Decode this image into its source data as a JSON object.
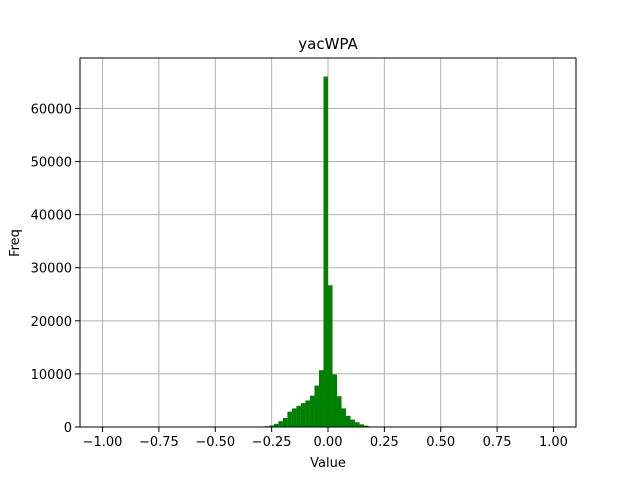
{
  "chart_data": {
    "type": "bar",
    "title": "yacWPA",
    "xlabel": "Value",
    "ylabel": "Freq",
    "xlim": [
      -1.1,
      1.1
    ],
    "ylim": [
      0,
      69500
    ],
    "xticks": [
      -1.0,
      -0.75,
      -0.5,
      -0.25,
      0.0,
      0.25,
      0.5,
      0.75,
      1.0
    ],
    "xtick_labels": [
      "−1.00",
      "−0.75",
      "−0.50",
      "−0.25",
      "0.00",
      "0.25",
      "0.50",
      "0.75",
      "1.00"
    ],
    "yticks": [
      0,
      10000,
      20000,
      30000,
      40000,
      50000,
      60000
    ],
    "ytick_labels": [
      "0",
      "10000",
      "20000",
      "30000",
      "40000",
      "50000",
      "60000"
    ],
    "grid": true,
    "bar_color": "#008000",
    "bin_width": 0.02,
    "bins": [
      {
        "x0": -0.3,
        "value": 100
      },
      {
        "x0": -0.28,
        "value": 150
      },
      {
        "x0": -0.26,
        "value": 300
      },
      {
        "x0": -0.24,
        "value": 600
      },
      {
        "x0": -0.22,
        "value": 1100
      },
      {
        "x0": -0.2,
        "value": 1700
      },
      {
        "x0": -0.18,
        "value": 2900
      },
      {
        "x0": -0.16,
        "value": 3500
      },
      {
        "x0": -0.14,
        "value": 4000
      },
      {
        "x0": -0.12,
        "value": 4500
      },
      {
        "x0": -0.1,
        "value": 5000
      },
      {
        "x0": -0.08,
        "value": 5900
      },
      {
        "x0": -0.06,
        "value": 7800
      },
      {
        "x0": -0.04,
        "value": 10700
      },
      {
        "x0": -0.02,
        "value": 66000
      },
      {
        "x0": 0.0,
        "value": 26700
      },
      {
        "x0": 0.02,
        "value": 9900
      },
      {
        "x0": 0.04,
        "value": 5800
      },
      {
        "x0": 0.06,
        "value": 3500
      },
      {
        "x0": 0.08,
        "value": 2100
      },
      {
        "x0": 0.1,
        "value": 1400
      },
      {
        "x0": 0.12,
        "value": 900
      },
      {
        "x0": 0.14,
        "value": 500
      },
      {
        "x0": 0.16,
        "value": 250
      },
      {
        "x0": 0.18,
        "value": 100
      }
    ]
  }
}
